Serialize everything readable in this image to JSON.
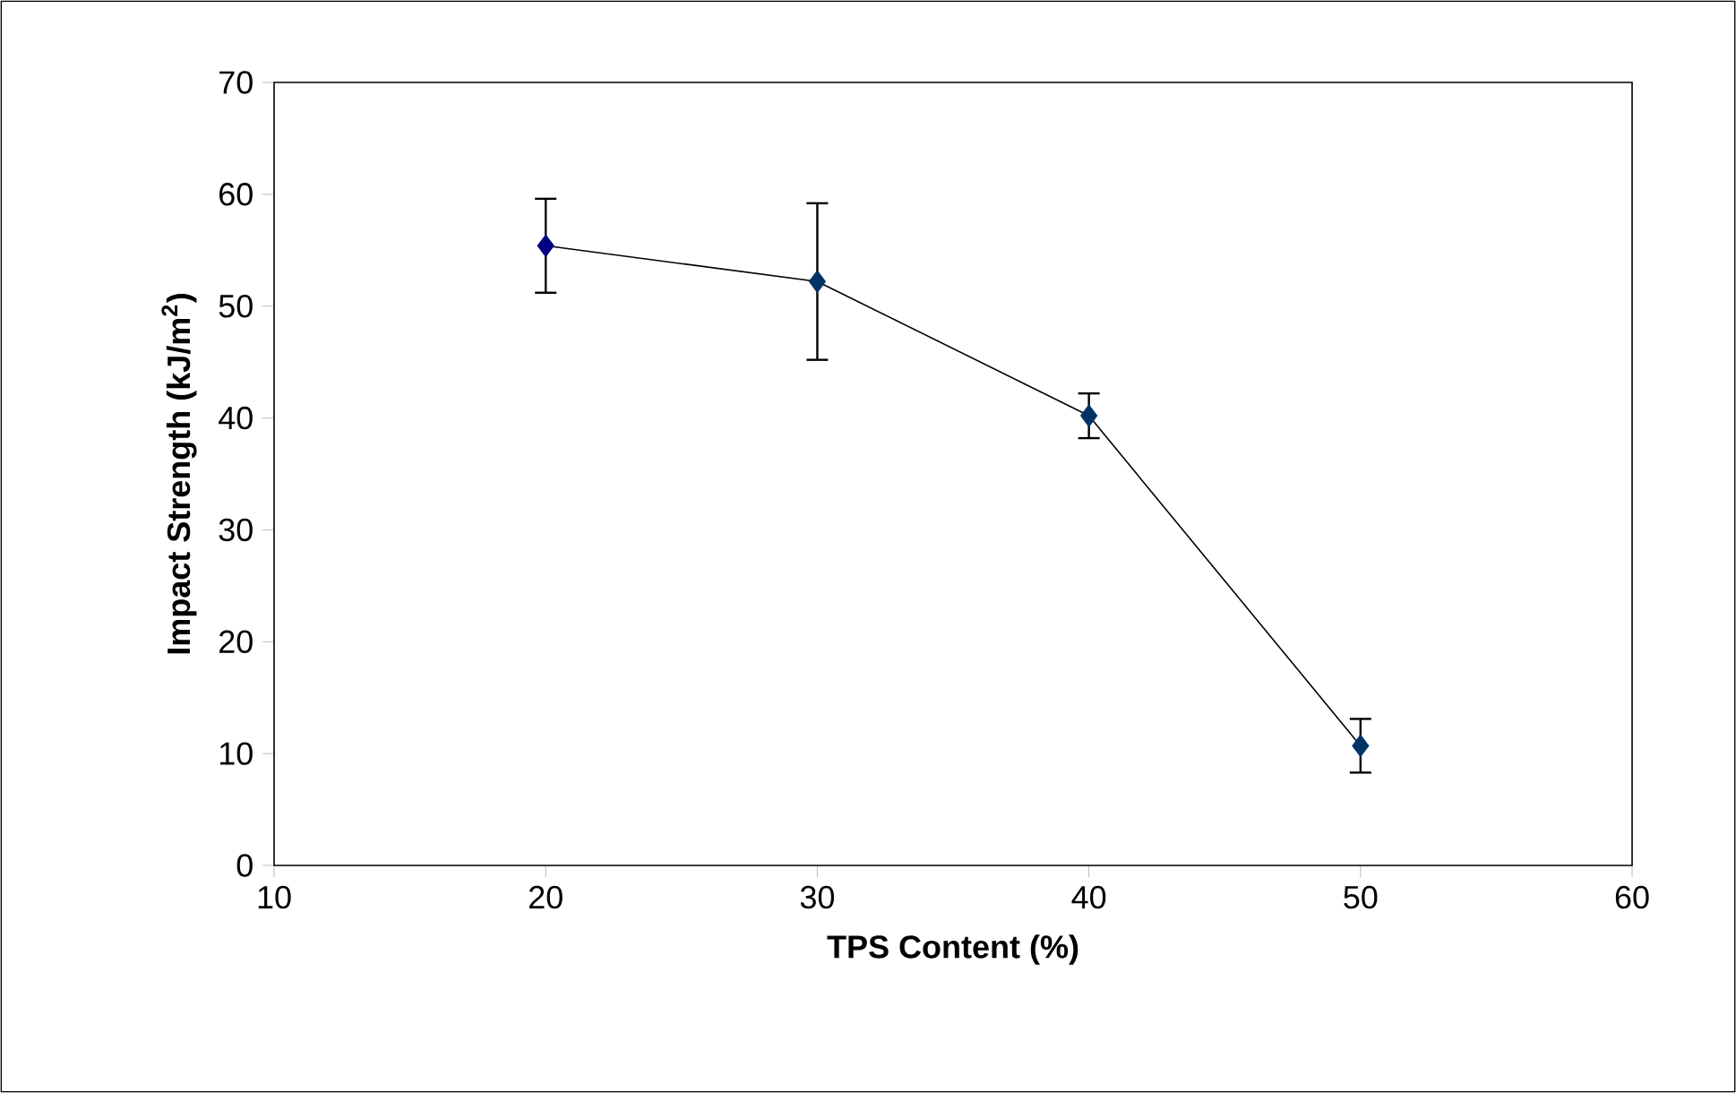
{
  "chart_data": {
    "type": "line",
    "xlabel": "TPS Content (%)",
    "ylabel": "Impact Strength (kJ/m$^{2}$)",
    "x": [
      20,
      30,
      40,
      50
    ],
    "series": [
      {
        "color": "#000000",
        "colors": [
          "#000080",
          "#003366",
          "#003366",
          "#003366"
        ],
        "values": [
          55.4,
          52.2,
          40.2,
          10.7
        ],
        "errors": [
          4.2,
          7.0,
          2.0,
          2.4
        ]
      }
    ],
    "xlim": [
      10,
      60
    ],
    "xticks": [
      10,
      20,
      30,
      40,
      50,
      60
    ],
    "ylim": [
      0,
      70
    ],
    "yticks": [
      0,
      10,
      20,
      30,
      40,
      50,
      60,
      70
    ],
    "grid": false,
    "legend": false,
    "marker": "diamond",
    "line_style": "solid"
  }
}
